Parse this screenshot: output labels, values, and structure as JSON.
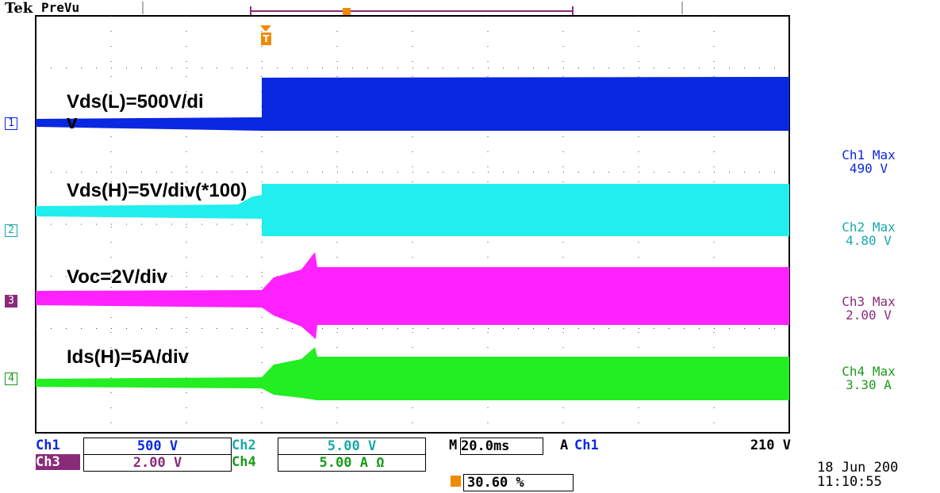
{
  "header": {
    "brand": "Tek",
    "mode": "PreVu",
    "trigger_marker": "T"
  },
  "traces": [
    {
      "marker": "1",
      "label": [
        "Vds(L)=500V/di",
        "v"
      ]
    },
    {
      "marker": "2",
      "label": [
        "Vds(H)=5V/div(*100)"
      ]
    },
    {
      "marker": "3",
      "label": [
        "Voc=2V/div"
      ]
    },
    {
      "marker": "4",
      "label": [
        "Ids(H)=5A/div"
      ]
    }
  ],
  "measurements": [
    {
      "name": "Ch1 Max",
      "value": "490 V"
    },
    {
      "name": "Ch2 Max",
      "value": "4.80 V"
    },
    {
      "name": "Ch3 Max",
      "value": "2.00 V"
    },
    {
      "name": "Ch4 Max",
      "value": "3.30 A"
    }
  ],
  "status": {
    "row1": [
      "Ch1",
      "500 V",
      "Ch2",
      "5.00 V",
      "M",
      "20.0ms",
      "A",
      "Ch1",
      "210 V"
    ],
    "row2": [
      "Ch3",
      "2.00 V",
      "Ch4",
      "5.00 A Ω"
    ],
    "trigger_position": "30.60 %",
    "date": "18 Jun 200",
    "time": "11:10:55"
  }
}
